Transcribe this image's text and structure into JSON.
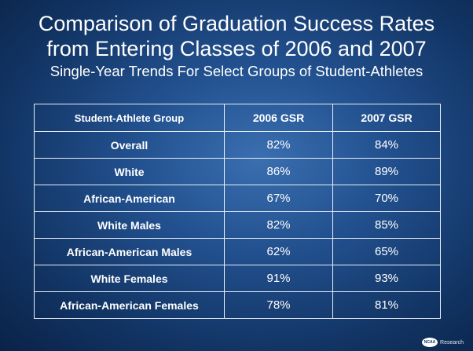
{
  "title_line1": "Comparison of Graduation Success Rates",
  "title_line2": "from Entering Classes of 2006 and 2007",
  "subtitle": "Single-Year Trends For Select Groups of Student-Athletes",
  "table": {
    "headers": [
      "Student-Athlete Group",
      "2006 GSR",
      "2007 GSR"
    ],
    "rows": [
      {
        "group": "Overall",
        "gsr2006": "82%",
        "gsr2007": "84%"
      },
      {
        "group": "White",
        "gsr2006": "86%",
        "gsr2007": "89%"
      },
      {
        "group": "African-American",
        "gsr2006": "67%",
        "gsr2007": "70%"
      },
      {
        "group": "White Males",
        "gsr2006": "82%",
        "gsr2007": "85%"
      },
      {
        "group": "African-American Males",
        "gsr2006": "62%",
        "gsr2007": "65%"
      },
      {
        "group": "White Females",
        "gsr2006": "91%",
        "gsr2007": "93%"
      },
      {
        "group": "African-American Females",
        "gsr2006": "78%",
        "gsr2007": "81%"
      }
    ]
  },
  "footer": {
    "logo_mark": "NCAA",
    "logo_text": "Research"
  }
}
